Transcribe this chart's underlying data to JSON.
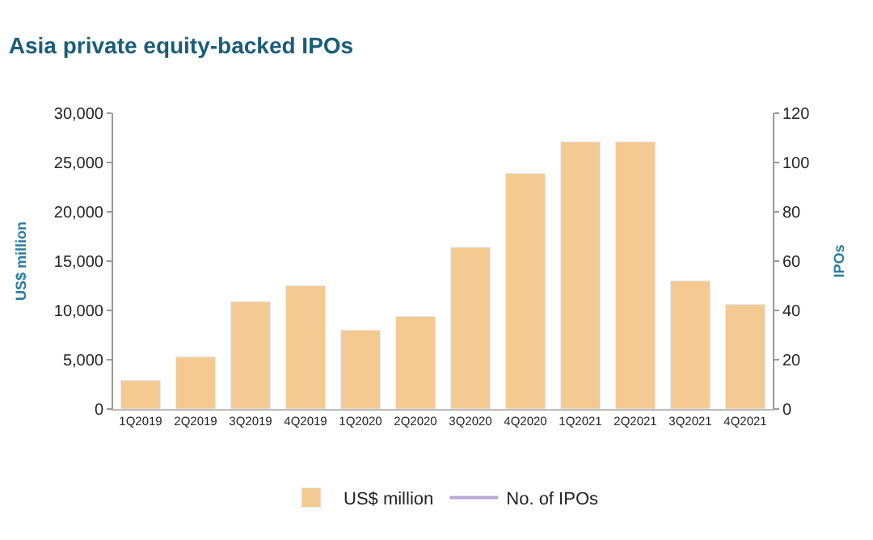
{
  "chart_data": {
    "type": "bar",
    "title": "Asia private equity-backed IPOs",
    "categories": [
      "1Q2019",
      "2Q2019",
      "3Q2019",
      "4Q2019",
      "1Q2020",
      "2Q2020",
      "3Q2020",
      "4Q2020",
      "1Q2021",
      "2Q2021",
      "3Q2021",
      "4Q2021"
    ],
    "series": [
      {
        "name": "US$ million",
        "color": "#f5c992",
        "values": [
          2900,
          5300,
          10900,
          12500,
          8000,
          9400,
          16400,
          23900,
          27100,
          27100,
          13000,
          10600
        ]
      },
      {
        "name": "No. of IPOs",
        "type": "line",
        "axis": "y2",
        "color": "#b9a6d6",
        "values": [
          null,
          null,
          null,
          null,
          null,
          null,
          null,
          null,
          null,
          null,
          null,
          null
        ]
      }
    ],
    "ylabel": "US$ million",
    "y2label": "IPOs",
    "ylim": [
      0,
      30000
    ],
    "yticks": [
      {
        "value": 0,
        "label": "0"
      },
      {
        "value": 5000,
        "label": "5,000"
      },
      {
        "value": 10000,
        "label": "10,000"
      },
      {
        "value": 15000,
        "label": "15,000"
      },
      {
        "value": 20000,
        "label": "20,000"
      },
      {
        "value": 25000,
        "label": "25,000"
      },
      {
        "value": 30000,
        "label": "30,000"
      }
    ],
    "y2lim": [
      0,
      120
    ],
    "y2ticks": [
      0,
      20,
      40,
      60,
      80,
      100,
      120
    ],
    "legend": "bottom"
  }
}
